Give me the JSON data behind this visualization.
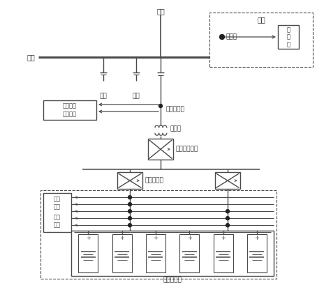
{
  "bg_color": "#ffffff",
  "line_color": "#4a4a4a",
  "text_color": "#333333",
  "fig_width": 4.54,
  "fig_height": 4.42,
  "dpi": 100,
  "labels": {
    "jinxian": "进线",
    "muxian": "母线",
    "fudian1": "负载",
    "fudian2": "负载",
    "ac_voltage": "交流电压",
    "ac_current": "交流电流",
    "ac_sensor": "交流互感器",
    "transformer": "变压器",
    "ac_dc_converter": "交直流转换器",
    "dc_converter": "直流转换器",
    "dc_voltage": "直流\n电压",
    "dc_current": "直流\n电流",
    "battery_group": "储能电池组",
    "legend_title": "图例",
    "measure_point": "测量点",
    "test_device": "测\n试\n量"
  }
}
